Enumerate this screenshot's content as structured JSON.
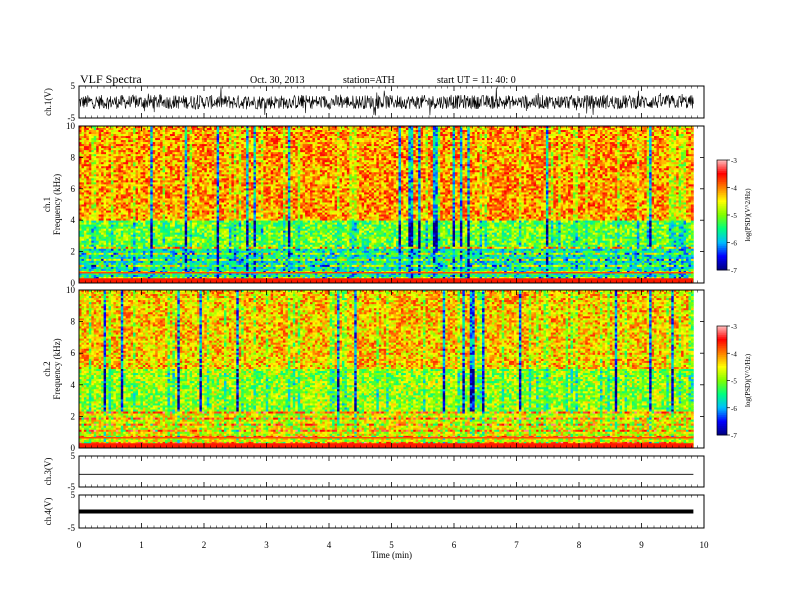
{
  "header": {
    "title": "VLF  Spectra",
    "date": "Oct. 30, 2013",
    "station": "station=ATH",
    "start": "start  UT  =   11: 40: 0"
  },
  "chart_data": [
    {
      "type": "line",
      "panel": "ch1-waveform",
      "ylabel": "ch.1(V)",
      "ylim": [
        -5,
        5
      ],
      "yticks": [
        "5",
        "-5"
      ],
      "xlim": [
        0,
        10
      ],
      "trace_color": "#000000"
    },
    {
      "type": "heatmap",
      "panel": "ch1-spectrogram",
      "ylabel": "ch.1\nFrequency  (kHz)",
      "ylabel_lines": [
        "ch.1",
        "Frequency  (kHz)"
      ],
      "ylim": [
        0,
        10
      ],
      "yticks": [
        "0",
        "2",
        "4",
        "6",
        "8",
        "10"
      ],
      "xlim": [
        0,
        9.83
      ],
      "colorbar": {
        "label": "log(PSD)(V^2/Hz)",
        "range": [
          -7,
          -3
        ],
        "ticks": [
          "-7",
          "-6",
          "-5",
          "-4",
          "-3"
        ]
      },
      "structure": {
        "low_freq_band_kHz": [
          0,
          2.2
        ],
        "mid_band_kHz": [
          2.2,
          4.0
        ],
        "high_band_kHz": [
          4.0,
          10
        ],
        "typical_logPSD": {
          "low": -5.6,
          "mid": -5.1,
          "high": -4.1
        }
      }
    },
    {
      "type": "heatmap",
      "panel": "ch2-spectrogram",
      "ylabel": "ch.2\nFrequency  (kHz)",
      "ylabel_lines": [
        "ch.2",
        "Frequency  (kHz)"
      ],
      "ylim": [
        0,
        10
      ],
      "yticks": [
        "0",
        "2",
        "4",
        "6",
        "8",
        "10"
      ],
      "xlim": [
        0,
        9.83
      ],
      "colorbar": {
        "label": "log(PSD)(V^2/Hz)",
        "range": [
          -7,
          -3
        ],
        "ticks": [
          "-7",
          "-6",
          "-5",
          "-4",
          "-3"
        ]
      },
      "structure": {
        "low_freq_band_kHz": [
          0,
          2.3
        ],
        "mid_band_kHz": [
          2.3,
          5.0
        ],
        "high_band_kHz": [
          5.0,
          10
        ],
        "typical_logPSD": {
          "low": -4.6,
          "mid": -4.9,
          "high": -4.3
        }
      }
    },
    {
      "type": "line",
      "panel": "ch3-waveform",
      "ylabel": "ch.3(V)",
      "ylim": [
        -5,
        5
      ],
      "yticks": [
        "5",
        "-5"
      ],
      "xlim": [
        0,
        10
      ],
      "level": -0.9
    },
    {
      "type": "line",
      "panel": "ch4-waveform",
      "ylabel": "ch.4(V)",
      "ylim": [
        -5,
        5
      ],
      "yticks": [
        "5",
        "-5"
      ],
      "xlim": [
        0,
        10
      ],
      "level": 0
    }
  ],
  "xaxis": {
    "label": "Time  (min)",
    "ticks": [
      "0",
      "1",
      "2",
      "3",
      "4",
      "5",
      "6",
      "7",
      "8",
      "9",
      "10"
    ]
  },
  "colors": {
    "colormap": [
      "#000080",
      "#0000ff",
      "#00bfff",
      "#00ff7f",
      "#7fff00",
      "#ffff00",
      "#ff7f00",
      "#ff0000",
      "#ffc0c0"
    ]
  }
}
